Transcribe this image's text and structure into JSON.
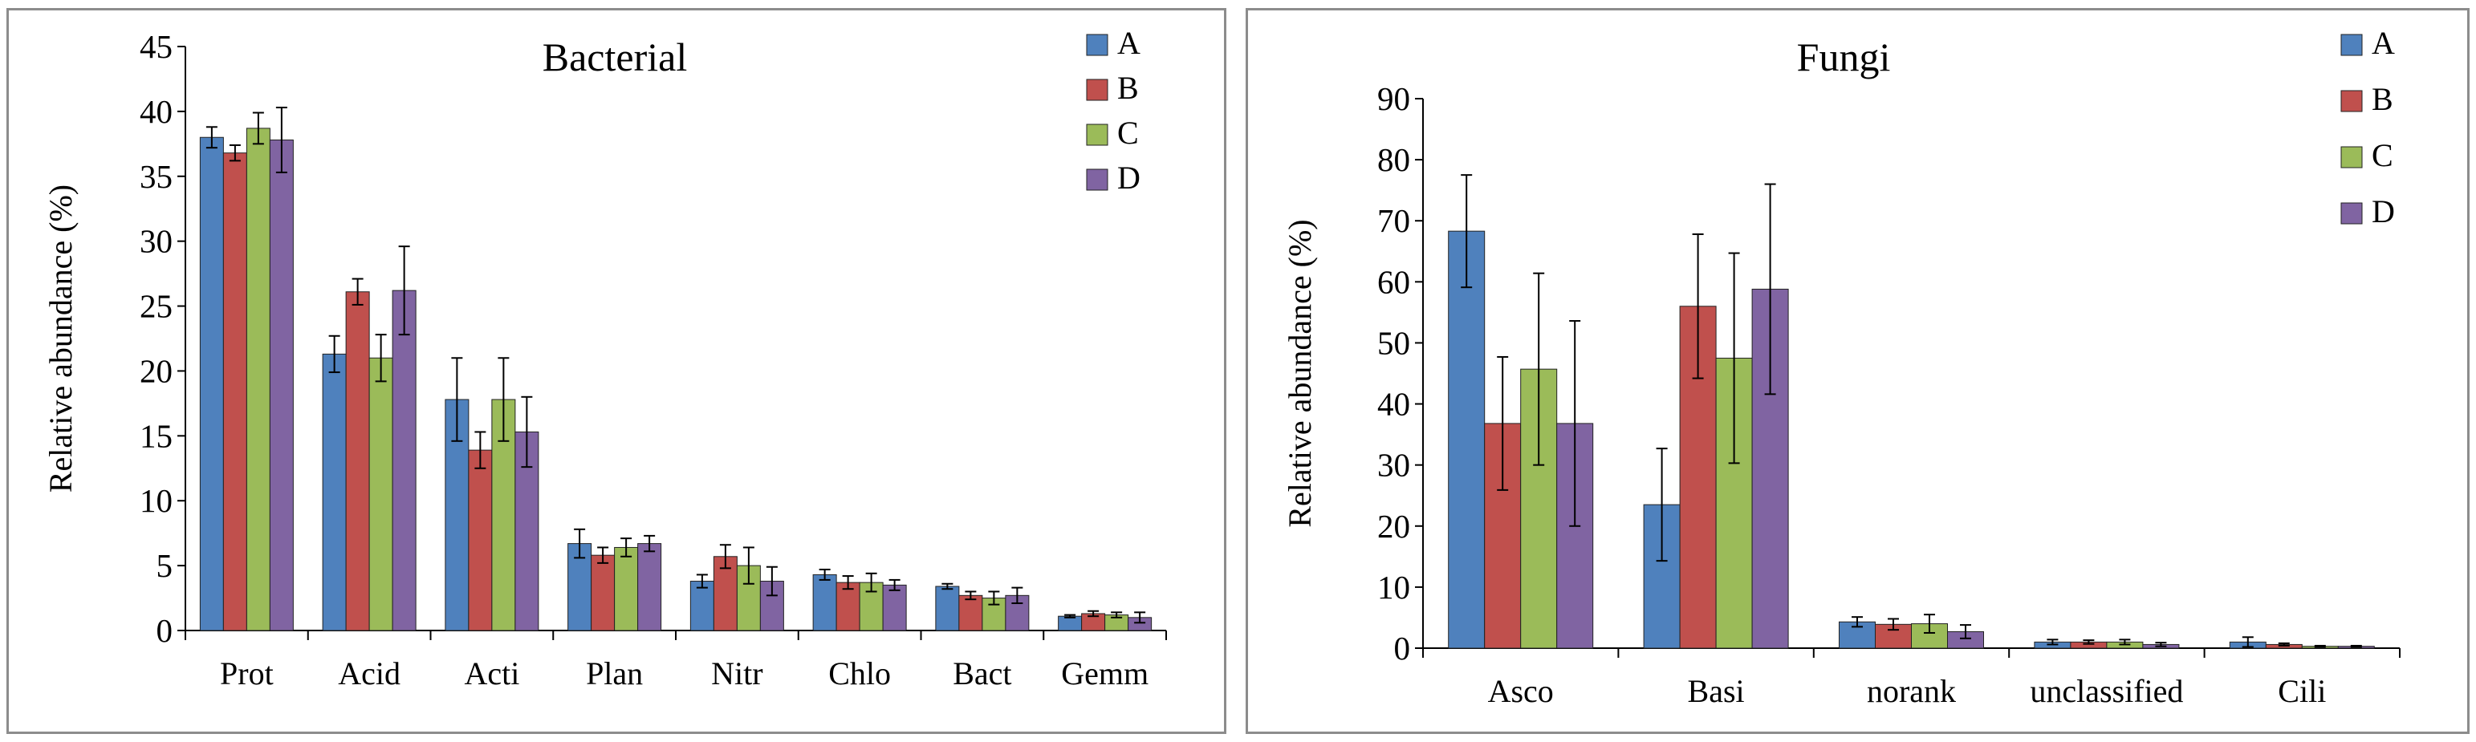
{
  "colors": {
    "A": "#4F81BD",
    "B": "#C0504D",
    "C": "#9BBB59",
    "D": "#8064A2"
  },
  "chart_data": [
    {
      "type": "bar",
      "title": "Bacterial",
      "xlabel": "",
      "ylabel": "Relative abundance (%)",
      "ylim": [
        0,
        45
      ],
      "yticks": [
        0,
        5,
        10,
        15,
        20,
        25,
        30,
        35,
        40,
        45
      ],
      "legend_position": "top-right",
      "categories": [
        "Prot",
        "Acid",
        "Acti",
        "Plan",
        "Nitr",
        "Chlo",
        "Bact",
        "Gemm"
      ],
      "series": [
        {
          "name": "A",
          "values": [
            38.0,
            21.3,
            17.8,
            6.7,
            3.8,
            4.3,
            3.4,
            1.1
          ],
          "errors": [
            0.8,
            1.4,
            3.2,
            1.1,
            0.5,
            0.4,
            0.2,
            0.1
          ]
        },
        {
          "name": "B",
          "values": [
            36.8,
            26.1,
            13.9,
            5.8,
            5.7,
            3.7,
            2.7,
            1.3
          ],
          "errors": [
            0.6,
            1.0,
            1.4,
            0.6,
            0.9,
            0.5,
            0.3,
            0.2
          ]
        },
        {
          "name": "C",
          "values": [
            38.7,
            21.0,
            17.8,
            6.4,
            5.0,
            3.7,
            2.5,
            1.2
          ],
          "errors": [
            1.2,
            1.8,
            3.2,
            0.7,
            1.4,
            0.7,
            0.5,
            0.2
          ]
        },
        {
          "name": "D",
          "values": [
            37.8,
            26.2,
            15.3,
            6.7,
            3.8,
            3.5,
            2.7,
            1.0
          ],
          "errors": [
            2.5,
            3.4,
            2.7,
            0.6,
            1.1,
            0.4,
            0.6,
            0.4
          ]
        }
      ]
    },
    {
      "type": "bar",
      "title": "Fungi",
      "xlabel": "",
      "ylabel": "Relative abundance (%)",
      "ylim": [
        0,
        90
      ],
      "yticks": [
        0,
        10,
        20,
        30,
        40,
        50,
        60,
        70,
        80,
        90
      ],
      "legend_position": "top-right",
      "categories": [
        "Asco",
        "Basi",
        "norank",
        "unclassified",
        "Cili"
      ],
      "series": [
        {
          "name": "A",
          "values": [
            68.3,
            23.5,
            4.3,
            1.0,
            1.0
          ],
          "errors": [
            9.2,
            9.2,
            0.8,
            0.4,
            0.8
          ]
        },
        {
          "name": "B",
          "values": [
            36.8,
            56.0,
            3.9,
            1.0,
            0.6
          ],
          "errors": [
            10.9,
            11.8,
            0.9,
            0.3,
            0.2
          ]
        },
        {
          "name": "C",
          "values": [
            45.7,
            47.5,
            4.0,
            1.0,
            0.3
          ],
          "errors": [
            15.7,
            17.2,
            1.5,
            0.4,
            0.1
          ]
        },
        {
          "name": "D",
          "values": [
            36.8,
            58.8,
            2.7,
            0.6,
            0.3
          ],
          "errors": [
            16.8,
            17.2,
            1.1,
            0.3,
            0.1
          ]
        }
      ]
    }
  ]
}
